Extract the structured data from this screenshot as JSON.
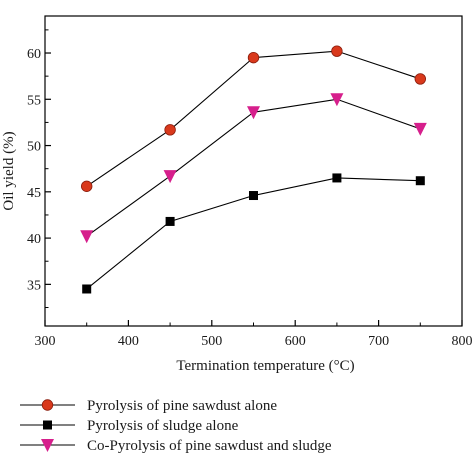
{
  "chart_data": {
    "type": "line",
    "xlabel": "Termination temperature (°C)",
    "ylabel": "Oil yield (%)",
    "xlim": [
      300,
      800
    ],
    "ylim": [
      30.5,
      64
    ],
    "xticks": [
      300,
      400,
      500,
      600,
      700,
      800
    ],
    "yticks": [
      35,
      40,
      45,
      50,
      55,
      60
    ],
    "grid": false,
    "legend_position": "bottom-left",
    "x": [
      350,
      450,
      550,
      650,
      750
    ],
    "series": [
      {
        "name": "Pyrolysis of pine sawdust alone",
        "values": [
          45.6,
          51.7,
          59.5,
          60.2,
          57.2
        ],
        "marker": "circle",
        "color": "#d9391c"
      },
      {
        "name": "Pyrolysis of sludge alone",
        "values": [
          34.5,
          41.8,
          44.6,
          46.5,
          46.2
        ],
        "marker": "square",
        "color": "#000000"
      },
      {
        "name": "Co-Pyrolysis of pine sawdust and sludge",
        "values": [
          40.2,
          46.7,
          53.6,
          55.0,
          51.8
        ],
        "marker": "triangle-down",
        "color": "#d61f8c"
      }
    ]
  }
}
